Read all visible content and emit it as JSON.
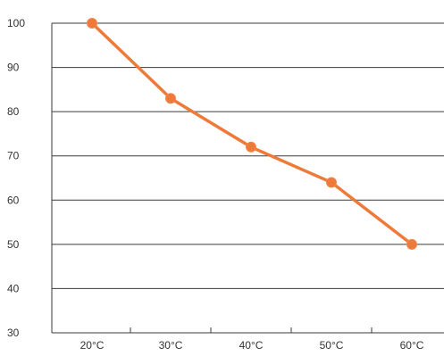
{
  "chart_data": {
    "type": "line",
    "title": "",
    "xlabel": "",
    "ylabel": "",
    "categories": [
      "20°C",
      "30°C",
      "40°C",
      "50°C",
      "60°C"
    ],
    "series": [
      {
        "values": [
          100,
          83,
          72,
          64,
          50
        ],
        "color": "#ee7a3a"
      }
    ],
    "ylim": [
      30,
      100
    ],
    "yticks": [
      "30",
      "40",
      "50",
      "60",
      "70",
      "80",
      "90",
      "100"
    ],
    "grid": "horizontal",
    "legend": "none"
  }
}
